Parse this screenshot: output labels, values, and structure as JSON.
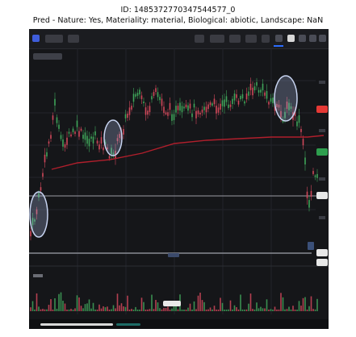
{
  "header": {
    "line1": "ID: 1485372770347544577_0",
    "line2": "Pred - Nature: Yes, Materiality: material, Biological: abiotic, Landscape: NaN"
  },
  "colors": {
    "background": "#151619",
    "candle_up": "#3fa55a",
    "candle_down": "#d0485a",
    "average_line": "#b01f2c",
    "highlight_circle": "#b9c7e6",
    "price_tag_red": "#e53935",
    "price_tag_green": "#2e9e4e"
  },
  "icons": [
    "chart-logo-icon",
    "plus-icon",
    "camera-icon",
    "settings-icon",
    "fullscreen-icon"
  ]
}
